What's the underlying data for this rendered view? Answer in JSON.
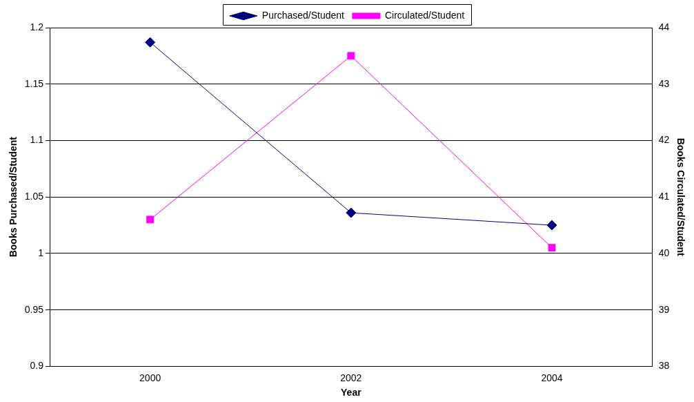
{
  "chart_data": {
    "type": "line",
    "xlabel": "Year",
    "ylabel": "Books Purchased/Student",
    "y2label": "Books Circulated/Student",
    "categories": [
      "2000",
      "2002",
      "2004"
    ],
    "series": [
      {
        "name": "Purchased/Student",
        "color": "#000080",
        "values": [
          1.187,
          1.036,
          1.025
        ],
        "marker": "diamond"
      },
      {
        "name": "Circulated/Student",
        "color": "#ff00ff",
        "values": [
          40.6,
          43.5,
          40.1
        ],
        "axis": "y2",
        "marker": "square"
      }
    ],
    "ylim": [
      0.9,
      1.2
    ],
    "yticks": [
      {
        "value": 0.9,
        "label": "0.9"
      },
      {
        "value": 0.95,
        "label": "0.95"
      },
      {
        "value": 1,
        "label": "1"
      },
      {
        "value": 1.05,
        "label": "1.05"
      },
      {
        "value": 1.1,
        "label": "1.1"
      },
      {
        "value": 1.15,
        "label": "1.15"
      },
      {
        "value": 1.2,
        "label": "1.2"
      }
    ],
    "y2lim": [
      38,
      44
    ],
    "y2ticks": [
      38,
      39,
      40,
      41,
      42,
      43,
      44
    ],
    "grid": "y",
    "legend": "top",
    "line_style": "solid"
  }
}
